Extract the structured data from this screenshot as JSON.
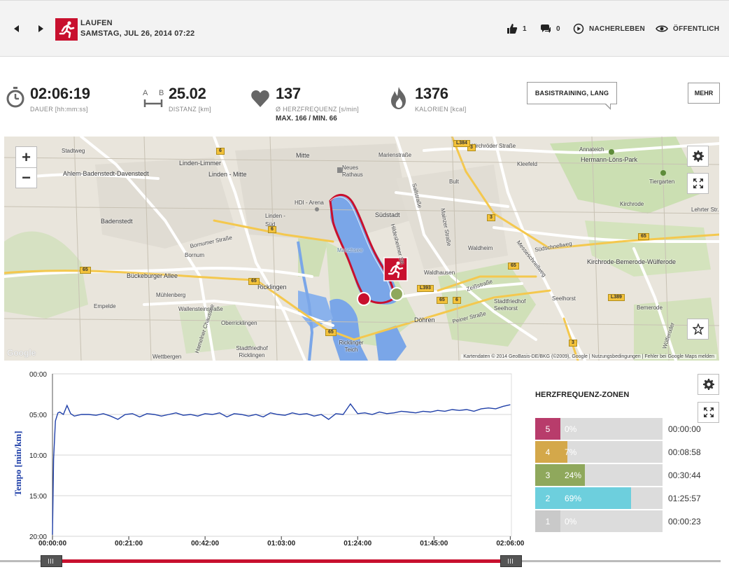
{
  "header": {
    "sport": "LAUFEN",
    "date": "SAMSTAG, JUL 26, 2014 07:22",
    "likes": "1",
    "comments": "0",
    "relive_label": "NACHERLEBEN",
    "visibility_label": "ÖFFENTLICH"
  },
  "stats": {
    "duration": {
      "value": "02:06:19",
      "label": "DAUER [hh:mm:ss]"
    },
    "distance": {
      "value": "25.02",
      "label": "DISTANZ [km]",
      "icon_letters": [
        "A",
        "B"
      ]
    },
    "heart_rate": {
      "value": "137",
      "label": "Ø HERZFREQUENZ [s/min]",
      "max_min": "MAX. 166  /  MIN. 66"
    },
    "calories": {
      "value": "1376",
      "label": "KALORIEN [kcal]"
    },
    "tag": "BASISTRAINING, LANG",
    "more_label": "MEHR"
  },
  "map": {
    "zoom_in": "+",
    "zoom_out": "−",
    "footer": "Kartendaten © 2014 GeoBasis-DE/BKG (©2009), Google  |  Nutzungsbedingungen  |  Fehler bei Google Maps melden",
    "logo": "Google",
    "labels": [
      "Stadtweg",
      "Ahlem-Badenstedt-Davenstedt",
      "Linden-Limmer",
      "Linden - Mitte",
      "Mitte",
      "Neues Rathaus",
      "Marienstraße",
      "Südstadt",
      "HDI - Arena",
      "Badenstedt",
      "Linden - Süd",
      "Bornumer Straße",
      "Bornum",
      "Bückeburger Allee",
      "Ricklingen",
      "Mühlenberg",
      "Wallensteinstraße",
      "Oberricklingen",
      "Empelde",
      "Wettbergen",
      "Stadtfriedhof Ricklingen",
      "Ricklinger Teich",
      "Döhren",
      "Peiner Straße",
      "Waldhausen",
      "Waldheim",
      "Stadtfriedhof Seelhorst",
      "Seelhorst",
      "Südschnellweg",
      "Kirchrode",
      "Kirchrode-Bemerode-Wülferode",
      "Bemerode",
      "Kleefeld",
      "Bult",
      "Annateich",
      "Hermann-Löns-Park",
      "Tiergarten",
      "Kirchröder Straße",
      "Lehrter Str.",
      "Messeschnellweg",
      "Hildesheimer Str.",
      "Sallstraße",
      "Mainzer Straße",
      "Zeißstraße",
      "Hamelner Chaussee",
      "Maschsee",
      "Wülferoder",
      "Bult"
    ],
    "road_shields": [
      "6",
      "3",
      "L384",
      "65",
      "65",
      "65",
      "65",
      "3",
      "6",
      "65",
      "L389",
      "L393",
      "6",
      "65",
      "3"
    ]
  },
  "chart_data": {
    "type": "line",
    "title": "",
    "xlabel": "",
    "ylabel": "Tempo [min/km]",
    "y_reversed": true,
    "ylim": [
      0,
      20
    ],
    "yticks": [
      "00:00",
      "05:00",
      "10:00",
      "15:00",
      "20:00"
    ],
    "xlim_seconds": [
      0,
      7579
    ],
    "xticks": [
      "00:00:00",
      "00:21:00",
      "00:42:00",
      "01:03:00",
      "01:24:00",
      "01:45:00",
      "02:06:00"
    ],
    "grid": true,
    "line_color": "#1f3fa8",
    "series": [
      {
        "values_comment_free": true,
        "x_minutes": [
          0,
          0.3,
          0.8,
          1.5,
          2,
          3,
          4,
          5,
          6,
          8,
          10,
          12,
          14,
          16,
          18,
          20,
          22,
          24,
          26,
          28,
          30,
          32,
          34,
          36,
          38,
          40,
          42,
          44,
          46,
          48,
          50,
          52,
          54,
          56,
          58,
          60,
          62,
          64,
          66,
          68,
          70,
          72,
          74,
          76,
          78,
          80,
          82,
          84,
          86,
          88,
          90,
          92,
          94,
          96,
          98,
          100,
          102,
          104,
          106,
          108,
          110,
          112,
          114,
          116,
          118,
          120,
          122,
          124,
          126
        ],
        "y_min_per_km": [
          19.8,
          10.5,
          5.8,
          4.8,
          4.7,
          5.0,
          3.9,
          4.9,
          5.2,
          5.0,
          5.0,
          5.1,
          4.9,
          5.2,
          5.6,
          5.0,
          4.9,
          5.3,
          4.9,
          5.0,
          5.2,
          5.0,
          4.8,
          5.1,
          5.0,
          5.2,
          4.9,
          5.0,
          4.8,
          5.3,
          4.9,
          5.0,
          5.2,
          5.0,
          5.3,
          4.8,
          5.0,
          5.1,
          4.8,
          5.0,
          4.9,
          5.2,
          5.0,
          5.6,
          4.9,
          5.0,
          3.7,
          4.9,
          4.8,
          5.0,
          4.7,
          4.9,
          4.8,
          4.6,
          4.7,
          4.8,
          4.6,
          4.7,
          4.5,
          4.6,
          4.4,
          4.5,
          4.4,
          4.6,
          4.3,
          4.2,
          4.3,
          4.0,
          3.8
        ]
      }
    ]
  },
  "zones": {
    "title": "HERZFREQUENZ-ZONEN",
    "items": [
      {
        "zone": "5",
        "pct": "0%",
        "fraction": 0.0,
        "time": "00:00:00",
        "color": "#b83c6b"
      },
      {
        "zone": "4",
        "pct": "7%",
        "fraction": 0.07,
        "time": "00:08:58",
        "color": "#d4a84a"
      },
      {
        "zone": "3",
        "pct": "24%",
        "fraction": 0.24,
        "time": "00:30:44",
        "color": "#8fa85c"
      },
      {
        "zone": "2",
        "pct": "69%",
        "fraction": 0.69,
        "time": "01:25:57",
        "color": "#6dcfdd"
      },
      {
        "zone": "1",
        "pct": "0%",
        "fraction": 0.0,
        "time": "00:00:23",
        "color": "#c9c9c9"
      }
    ]
  },
  "colors": {
    "accent": "#c8102e",
    "route": "#c8102e",
    "lake": "#7aa6e8",
    "map_bg": "#e9e5dc",
    "park": "#cfe0b4"
  },
  "slider": {
    "start_fraction": 0.0,
    "end_fraction": 1.0
  }
}
